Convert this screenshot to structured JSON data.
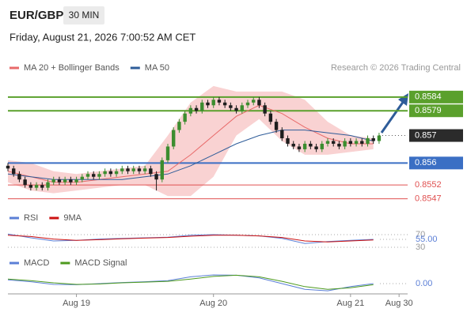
{
  "header": {
    "symbol": "EUR/GBP",
    "interval": "30 MIN",
    "datetime": "Friday, August 21, 2026 7:00:52 AM CET"
  },
  "chart_data": [
    {
      "type": "candlestick",
      "credit": "Research © 2026 Trading Central",
      "up_color": "#3c8d2f",
      "down_color": "#1e1e1e",
      "xlim": [
        0,
        70
      ],
      "xticks": [
        {
          "value": 12,
          "label": "Aug 19"
        },
        {
          "value": 36,
          "label": "Aug 20"
        },
        {
          "value": 60,
          "label": "Aug 21"
        },
        {
          "value": 68.5,
          "label": "Aug 30"
        }
      ],
      "ylim": [
        0.8544,
        0.8592
      ],
      "candles": [
        [
          0.8559,
          0.856,
          0.8557,
          0.8558
        ],
        [
          0.8558,
          0.8559,
          0.8555,
          0.8556
        ],
        [
          0.8556,
          0.8557,
          0.8553,
          0.8554
        ],
        [
          0.8554,
          0.8555,
          0.8551,
          0.8552
        ],
        [
          0.8552,
          0.8553,
          0.855,
          0.8551
        ],
        [
          0.8551,
          0.8553,
          0.855,
          0.8552
        ],
        [
          0.8552,
          0.8553,
          0.855,
          0.8551
        ],
        [
          0.8551,
          0.8554,
          0.855,
          0.8553
        ],
        [
          0.8553,
          0.8555,
          0.8552,
          0.8554
        ],
        [
          0.8554,
          0.8555,
          0.8552,
          0.8553
        ],
        [
          0.8553,
          0.8555,
          0.8552,
          0.8554
        ],
        [
          0.8554,
          0.8555,
          0.8552,
          0.8553
        ],
        [
          0.8553,
          0.8555,
          0.8552,
          0.8554
        ],
        [
          0.8554,
          0.8556,
          0.8553,
          0.8555
        ],
        [
          0.8555,
          0.8557,
          0.8554,
          0.8556
        ],
        [
          0.8556,
          0.8557,
          0.8554,
          0.8555
        ],
        [
          0.8555,
          0.8557,
          0.8554,
          0.8556
        ],
        [
          0.8556,
          0.8558,
          0.8555,
          0.8557
        ],
        [
          0.8557,
          0.8558,
          0.8555,
          0.8556
        ],
        [
          0.8556,
          0.8558,
          0.8555,
          0.8557
        ],
        [
          0.8557,
          0.8559,
          0.8556,
          0.8558
        ],
        [
          0.8558,
          0.8559,
          0.8556,
          0.8557
        ],
        [
          0.8557,
          0.8559,
          0.8556,
          0.8558
        ],
        [
          0.8558,
          0.8559,
          0.8556,
          0.8557
        ],
        [
          0.8557,
          0.8559,
          0.8556,
          0.8558
        ],
        [
          0.8558,
          0.8559,
          0.8555,
          0.8556
        ],
        [
          0.8556,
          0.8557,
          0.855,
          0.8554
        ],
        [
          0.8554,
          0.8562,
          0.8553,
          0.8561
        ],
        [
          0.8561,
          0.8567,
          0.856,
          0.8566
        ],
        [
          0.8566,
          0.8573,
          0.8565,
          0.8572
        ],
        [
          0.8572,
          0.8576,
          0.8571,
          0.8575
        ],
        [
          0.8575,
          0.8579,
          0.8574,
          0.8578
        ],
        [
          0.8578,
          0.8581,
          0.8577,
          0.858
        ],
        [
          0.858,
          0.8581,
          0.8578,
          0.8579
        ],
        [
          0.8579,
          0.8583,
          0.8578,
          0.8582
        ],
        [
          0.8582,
          0.8583,
          0.858,
          0.8581
        ],
        [
          0.8581,
          0.8584,
          0.858,
          0.8583
        ],
        [
          0.8583,
          0.8584,
          0.8581,
          0.8582
        ],
        [
          0.8582,
          0.8583,
          0.858,
          0.8581
        ],
        [
          0.8581,
          0.8582,
          0.8579,
          0.858
        ],
        [
          0.858,
          0.8581,
          0.8578,
          0.8579
        ],
        [
          0.8579,
          0.8582,
          0.8578,
          0.8581
        ],
        [
          0.8581,
          0.8583,
          0.858,
          0.8582
        ],
        [
          0.8582,
          0.8584,
          0.8581,
          0.8583
        ],
        [
          0.8583,
          0.8584,
          0.858,
          0.8581
        ],
        [
          0.8581,
          0.8582,
          0.8577,
          0.8578
        ],
        [
          0.8578,
          0.8579,
          0.8574,
          0.8575
        ],
        [
          0.8575,
          0.8576,
          0.8571,
          0.8572
        ],
        [
          0.8572,
          0.8573,
          0.8568,
          0.8569
        ],
        [
          0.8569,
          0.857,
          0.8566,
          0.8567
        ],
        [
          0.8567,
          0.8568,
          0.8565,
          0.8566
        ],
        [
          0.8566,
          0.8567,
          0.8564,
          0.8565
        ],
        [
          0.8565,
          0.8568,
          0.8564,
          0.8567
        ],
        [
          0.8567,
          0.8568,
          0.8565,
          0.8566
        ],
        [
          0.8566,
          0.8567,
          0.8564,
          0.8565
        ],
        [
          0.8565,
          0.8568,
          0.8564,
          0.8567
        ],
        [
          0.8567,
          0.8569,
          0.8566,
          0.8568
        ],
        [
          0.8568,
          0.8569,
          0.8566,
          0.8567
        ],
        [
          0.8567,
          0.8568,
          0.8565,
          0.8566
        ],
        [
          0.8566,
          0.8569,
          0.8565,
          0.8568
        ],
        [
          0.8568,
          0.8569,
          0.8566,
          0.8567
        ],
        [
          0.8567,
          0.8569,
          0.8566,
          0.8568
        ],
        [
          0.8568,
          0.8569,
          0.8566,
          0.8567
        ],
        [
          0.8567,
          0.857,
          0.8566,
          0.8569
        ],
        [
          0.8569,
          0.857,
          0.8567,
          0.8568
        ],
        [
          0.8568,
          0.8571,
          0.8567,
          0.857
        ]
      ],
      "x": [
        0,
        4,
        8,
        12,
        16,
        20,
        24,
        28,
        32,
        36,
        40,
        44,
        48,
        52,
        56,
        60,
        64
      ],
      "series": [
        {
          "name": "MA 20 + Bollinger Bands",
          "color": "#e86a6a",
          "band_color": "#f9d2d2",
          "values": [
            0.8557,
            0.8555,
            0.8553,
            0.8553,
            0.8554,
            0.8555,
            0.8556,
            0.8557,
            0.8563,
            0.857,
            0.8577,
            0.8581,
            0.8578,
            0.8573,
            0.8569,
            0.8567,
            0.8567
          ],
          "upper": [
            0.8561,
            0.856,
            0.8557,
            0.8556,
            0.8557,
            0.8558,
            0.8559,
            0.857,
            0.8582,
            0.8588,
            0.8586,
            0.8586,
            0.8586,
            0.8583,
            0.8575,
            0.857,
            0.8569
          ],
          "lower": [
            0.8553,
            0.855,
            0.8549,
            0.855,
            0.8551,
            0.8552,
            0.8552,
            0.8548,
            0.8548,
            0.8555,
            0.857,
            0.8576,
            0.8568,
            0.8563,
            0.8563,
            0.8564,
            0.8565
          ]
        },
        {
          "name": "MA 50",
          "color": "#2e5c99",
          "values": [
            0.8556,
            0.8555,
            0.8554,
            0.8554,
            0.8554,
            0.8554,
            0.8555,
            0.8556,
            0.8559,
            0.8563,
            0.8567,
            0.857,
            0.8572,
            0.8572,
            0.8571,
            0.857,
            0.8568
          ]
        }
      ],
      "levels": [
        {
          "value": 0.8584,
          "color": "#5aa02c",
          "boxed": true
        },
        {
          "value": 0.8579,
          "color": "#5aa02c",
          "boxed": true
        },
        {
          "value": 0.857,
          "color": "#2b2b2b",
          "boxed": true,
          "dotted": true
        },
        {
          "value": 0.856,
          "color": "#3b6fc4",
          "boxed": true
        },
        {
          "value": 0.8552,
          "color": "#e05050",
          "boxed": false
        },
        {
          "value": 0.8547,
          "color": "#e05050",
          "boxed": false
        }
      ]
    },
    {
      "type": "line",
      "x": [
        0,
        4,
        8,
        12,
        16,
        20,
        24,
        28,
        32,
        36,
        40,
        44,
        48,
        52,
        56,
        60,
        64
      ],
      "ylim": [
        20,
        80
      ],
      "yticks": [
        70,
        {
          "value": 55,
          "label": "55.00"
        },
        30
      ],
      "series": [
        {
          "name": "RSI",
          "color": "#5b7fd6",
          "values": [
            72,
            60,
            50,
            52,
            56,
            58,
            60,
            62,
            68,
            70,
            68,
            66,
            58,
            42,
            48,
            52,
            55
          ]
        },
        {
          "name": "9MA",
          "color": "#cc1111",
          "values": [
            68,
            64,
            56,
            52,
            54,
            57,
            59,
            61,
            65,
            68,
            68,
            66,
            61,
            50,
            47,
            50,
            53
          ]
        }
      ]
    },
    {
      "type": "line",
      "x": [
        0,
        4,
        8,
        12,
        16,
        20,
        24,
        28,
        32,
        36,
        40,
        44,
        48,
        52,
        56,
        60,
        64
      ],
      "ylim": [
        -0.0005,
        0.0005
      ],
      "yticks": [
        {
          "value": 0,
          "label": "0.00"
        }
      ],
      "series": [
        {
          "name": "MACD",
          "color": "#5b7fd6",
          "values": [
            0.0001,
            5e-05,
            -2e-05,
            -3e-05,
            0,
            3e-05,
            5e-05,
            8e-05,
            0.00018,
            0.00023,
            0.00022,
            0.00015,
            0,
            -0.00015,
            -0.00019,
            -8e-05,
            0
          ]
        },
        {
          "name": "MACD Signal",
          "color": "#4d9a1e",
          "values": [
            0.00012,
            8e-05,
            2e-05,
            -2e-05,
            -1e-05,
            2e-05,
            4e-05,
            6e-05,
            0.00012,
            0.00019,
            0.00022,
            0.00018,
            6e-05,
            -8e-05,
            -0.00015,
            -0.00011,
            -3e-05
          ]
        }
      ]
    }
  ]
}
